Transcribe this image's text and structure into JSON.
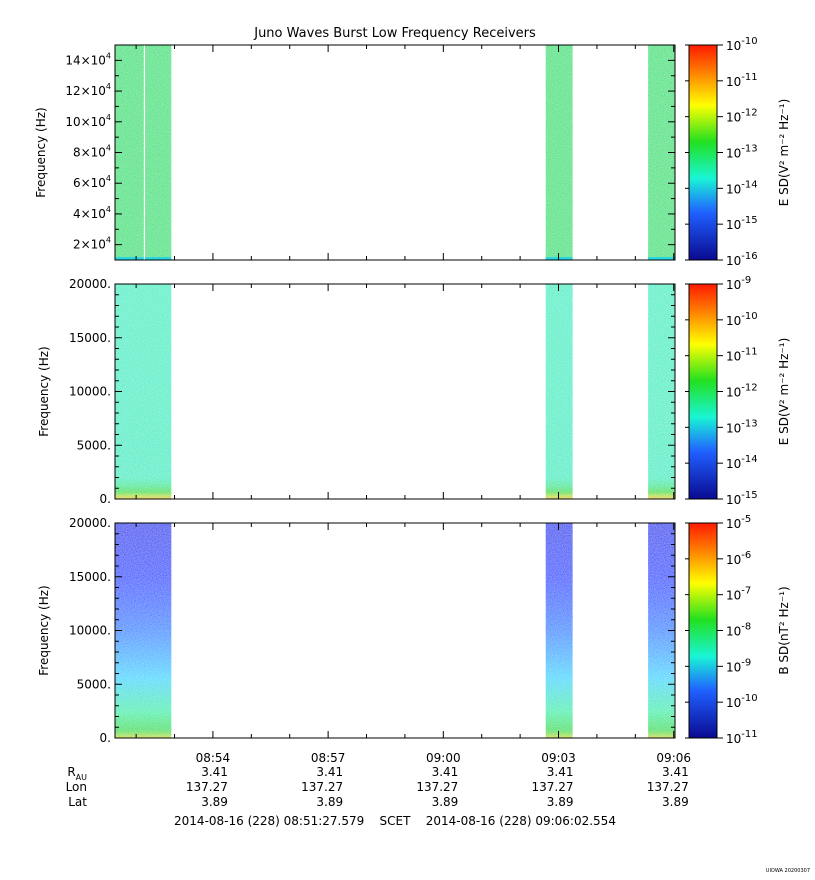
{
  "figure": {
    "title": "Juno Waves Burst Low Frequency Receivers",
    "time_range": "2014-08-16 (228) 08:51:27.579    SCET    2014-08-16 (228) 09:06:02.554",
    "stamp": "UIOWA 20200307"
  },
  "chart_data": [
    {
      "type": "heatmap",
      "panel": "top",
      "ylabel": "Frequency (Hz)",
      "ylim": [
        10000,
        150000
      ],
      "yticks": [
        20000,
        40000,
        60000,
        80000,
        100000,
        120000,
        140000
      ],
      "ytick_labels": [
        {
          "base": "2×10",
          "exp": "4"
        },
        {
          "base": "4×10",
          "exp": "4"
        },
        {
          "base": "6×10",
          "exp": "4"
        },
        {
          "base": "8×10",
          "exp": "4"
        },
        {
          "base": "10×10",
          "exp": "4"
        },
        {
          "base": "12×10",
          "exp": "4"
        },
        {
          "base": "14×10",
          "exp": "4"
        }
      ],
      "colorbar": {
        "label": "E SD(V² m⁻² Hz⁻¹)",
        "ticks": [
          {
            "base": "10",
            "exp": "-10"
          },
          {
            "base": "10",
            "exp": "-11"
          },
          {
            "base": "10",
            "exp": "-12"
          },
          {
            "base": "10",
            "exp": "-13"
          },
          {
            "base": "10",
            "exp": "-14"
          },
          {
            "base": "10",
            "exp": "-15"
          },
          {
            "base": "10",
            "exp": "-16"
          }
        ]
      },
      "bursts": [
        {
          "start": "08:51:27",
          "end": "08:52:55",
          "level_low": 0.3,
          "level_high": 0.62,
          "gap_at": "08:52:13"
        },
        {
          "start": "09:02:40",
          "end": "09:03:22",
          "level_low": 0.3,
          "level_high": 0.62
        },
        {
          "start": "09:05:20",
          "end": "09:06:02",
          "level_low": 0.3,
          "level_high": 0.62
        }
      ]
    },
    {
      "type": "heatmap",
      "panel": "middle",
      "ylabel": "Frequency (Hz)",
      "ylim": [
        0,
        20000
      ],
      "yticks": [
        0,
        5000,
        10000,
        15000,
        20000
      ],
      "ytick_labels": [
        "0.",
        "5000.",
        "10000.",
        "15000.",
        "20000."
      ],
      "colorbar": {
        "label": "E SD(V² m⁻² Hz⁻¹)",
        "ticks": [
          {
            "base": "10",
            "exp": "-9"
          },
          {
            "base": "10",
            "exp": "-10"
          },
          {
            "base": "10",
            "exp": "-11"
          },
          {
            "base": "10",
            "exp": "-12"
          },
          {
            "base": "10",
            "exp": "-13"
          },
          {
            "base": "10",
            "exp": "-14"
          },
          {
            "base": "10",
            "exp": "-15"
          }
        ]
      },
      "bursts": [
        {
          "start": "08:51:27",
          "end": "08:52:55"
        },
        {
          "start": "09:02:40",
          "end": "09:03:22"
        },
        {
          "start": "09:05:20",
          "end": "09:06:02"
        }
      ]
    },
    {
      "type": "heatmap",
      "panel": "bottom",
      "ylabel": "Frequency (Hz)",
      "ylim": [
        0,
        20000
      ],
      "yticks": [
        0,
        5000,
        10000,
        15000,
        20000
      ],
      "ytick_labels": [
        "0.",
        "5000.",
        "10000.",
        "15000.",
        "20000."
      ],
      "colorbar": {
        "label": "B SD(nT² Hz⁻¹)",
        "ticks": [
          {
            "base": "10",
            "exp": "-5"
          },
          {
            "base": "10",
            "exp": "-6"
          },
          {
            "base": "10",
            "exp": "-7"
          },
          {
            "base": "10",
            "exp": "-8"
          },
          {
            "base": "10",
            "exp": "-9"
          },
          {
            "base": "10",
            "exp": "-10"
          },
          {
            "base": "10",
            "exp": "-11"
          }
        ]
      },
      "bursts": [
        {
          "start": "08:51:27",
          "end": "08:52:55"
        },
        {
          "start": "09:02:40",
          "end": "09:03:22"
        },
        {
          "start": "09:05:20",
          "end": "09:06:02"
        }
      ]
    }
  ],
  "time_axis": {
    "start": "08:51:27",
    "end": "09:06:02",
    "ticks": [
      "08:54",
      "08:57",
      "09:00",
      "09:03",
      "09:06"
    ]
  },
  "ephemeris": {
    "row_labels": [
      "R",
      "Lon",
      "Lat"
    ],
    "r_subscript": "AU",
    "rows": [
      [
        "3.41",
        "3.41",
        "3.41",
        "3.41",
        "3.41"
      ],
      [
        "137.27",
        "137.27",
        "137.27",
        "137.27",
        "137.27"
      ],
      [
        "3.89",
        "3.89",
        "3.89",
        "3.89",
        "3.89"
      ]
    ]
  },
  "colors": {
    "green": "#22e07a",
    "cyan": "#34f2c2",
    "blue": "#1040ff"
  }
}
